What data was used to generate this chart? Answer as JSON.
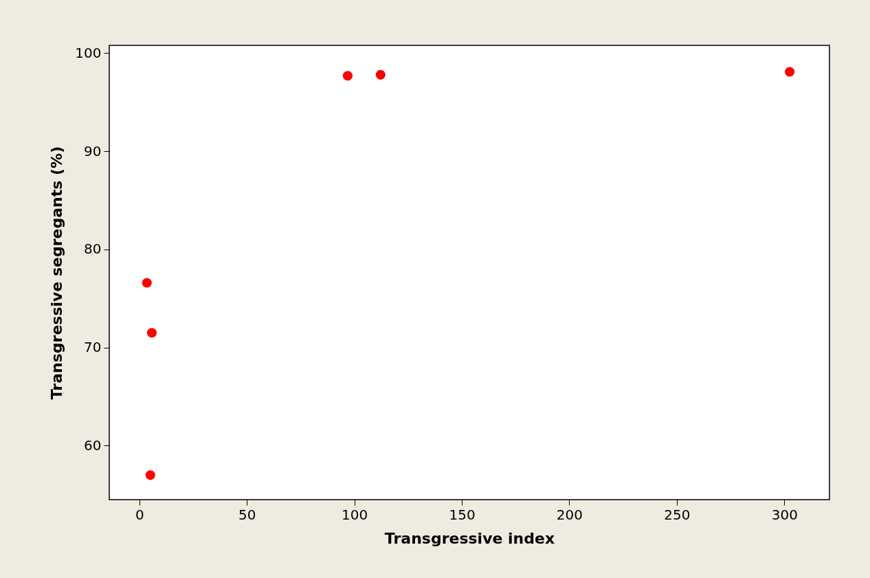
{
  "chart_data": {
    "type": "scatter",
    "xlabel": "Transgressive index",
    "ylabel": "Transgressive segregants (%)",
    "x": [
      3.5,
      5.8,
      5.1,
      96.9,
      112.2,
      302.5
    ],
    "series": [
      {
        "color": "#ff0000",
        "values": [
          76.6,
          71.5,
          57.0,
          97.7,
          97.8,
          98.1
        ]
      }
    ],
    "xlim": [
      -14,
      321
    ],
    "ylim": [
      54.5,
      100.8
    ],
    "xticks": [
      0,
      50,
      100,
      150,
      200,
      250,
      300
    ],
    "yticks": [
      60,
      70,
      80,
      90,
      100
    ],
    "marker": "circle",
    "grid": false,
    "legend": false
  }
}
